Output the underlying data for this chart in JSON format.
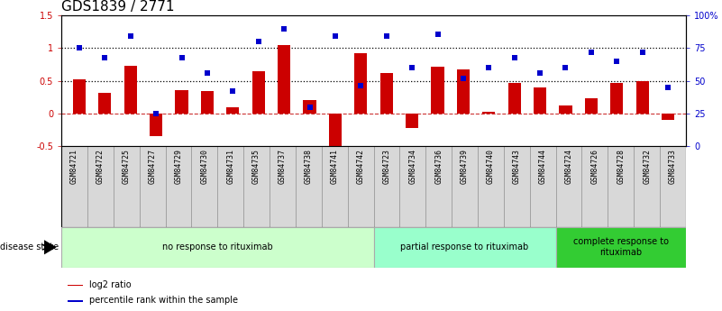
{
  "title": "GDS1839 / 2771",
  "samples": [
    "GSM84721",
    "GSM84722",
    "GSM84725",
    "GSM84727",
    "GSM84729",
    "GSM84730",
    "GSM84731",
    "GSM84735",
    "GSM84737",
    "GSM84738",
    "GSM84741",
    "GSM84742",
    "GSM84723",
    "GSM84734",
    "GSM84736",
    "GSM84739",
    "GSM84740",
    "GSM84743",
    "GSM84744",
    "GSM84724",
    "GSM84726",
    "GSM84728",
    "GSM84732",
    "GSM84733"
  ],
  "log2_ratio": [
    0.52,
    0.32,
    0.73,
    -0.35,
    0.36,
    0.34,
    0.1,
    0.65,
    1.05,
    0.2,
    -0.58,
    0.93,
    0.62,
    -0.22,
    0.72,
    0.68,
    0.02,
    0.47,
    0.4,
    0.13,
    0.24,
    0.47,
    0.5,
    -0.1
  ],
  "percentile_rank": [
    75,
    68,
    84,
    25,
    68,
    56,
    42,
    80,
    90,
    30,
    84,
    46,
    84,
    60,
    86,
    52,
    60,
    68,
    56,
    60,
    72,
    65,
    72,
    45
  ],
  "groups": [
    {
      "label": "no response to rituximab",
      "start": 0,
      "end": 11,
      "color": "#ccffcc"
    },
    {
      "label": "partial response to rituximab",
      "start": 12,
      "end": 18,
      "color": "#99ffcc"
    },
    {
      "label": "complete response to\nrituximab",
      "start": 19,
      "end": 23,
      "color": "#33cc33"
    }
  ],
  "ylim_left": [
    -0.5,
    1.5
  ],
  "ylim_right": [
    0,
    100
  ],
  "yticks_left": [
    -0.5,
    0.0,
    0.5,
    1.0,
    1.5
  ],
  "ytick_labels_left": [
    "-0.5",
    "0",
    "0.5",
    "1",
    "1.5"
  ],
  "yticks_right": [
    0,
    25,
    50,
    75,
    100
  ],
  "ytick_labels_right": [
    "0",
    "25",
    "50",
    "75",
    "100%"
  ],
  "hlines": [
    0.5,
    1.0
  ],
  "bar_color": "#cc0000",
  "dot_color": "#0000cc",
  "zero_line_color": "#cc3333",
  "background_color": "#ffffff",
  "title_fontsize": 11,
  "tick_fontsize": 7,
  "label_fontsize": 7,
  "sample_label_bg": "#d8d8d8",
  "sample_label_border": "#888888"
}
